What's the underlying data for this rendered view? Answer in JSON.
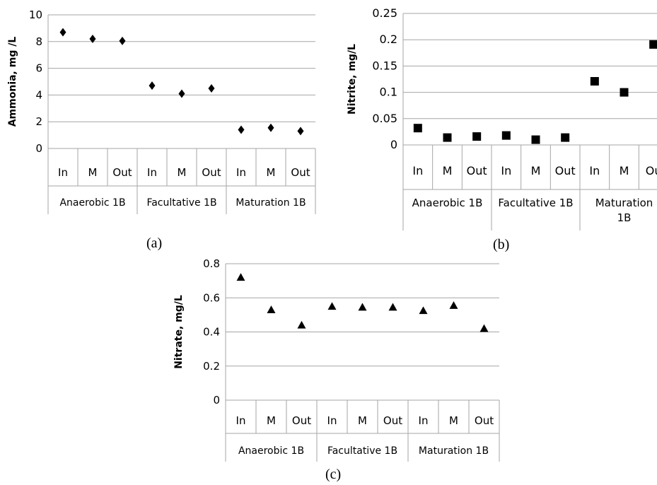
{
  "chart_data": [
    {
      "id": "a",
      "type": "scatter",
      "caption": "(a)",
      "ylabel": "Ammonia, mg /L",
      "ylim": [
        0,
        10
      ],
      "yticks": [
        0,
        2,
        4,
        6,
        8,
        10
      ],
      "ytick_labels": [
        "0",
        "2",
        "4",
        "6",
        "8",
        "10"
      ],
      "grid": true,
      "marker": "diamond",
      "categories": [
        "In",
        "M",
        "Out",
        "In",
        "M",
        "Out",
        "In",
        "M",
        "Out"
      ],
      "groups": [
        "Anaerobic 1B",
        "Facultative 1B",
        "Maturation 1B"
      ],
      "values": [
        8.7,
        8.2,
        8.05,
        4.7,
        4.1,
        4.5,
        1.4,
        1.55,
        1.3
      ]
    },
    {
      "id": "b",
      "type": "scatter",
      "caption": "(b)",
      "ylabel": "Nitrite, mg/L",
      "ylim": [
        0,
        0.25
      ],
      "yticks": [
        0,
        0.05,
        0.1,
        0.15,
        0.2,
        0.25
      ],
      "ytick_labels": [
        "0",
        "0.05",
        "0.1",
        "0.15",
        "0.2",
        "0.25"
      ],
      "grid": true,
      "marker": "square",
      "categories": [
        "In",
        "M",
        "Out",
        "In",
        "M",
        "Out",
        "In",
        "M",
        "Ou"
      ],
      "groups": [
        "Anaerobic 1B",
        "Facultative 1B",
        "Maturation 1B"
      ],
      "group_lines": [
        [
          "Anaerobic 1B"
        ],
        [
          "Facultative 1B"
        ],
        [
          "Maturation",
          "1B"
        ]
      ],
      "values": [
        0.032,
        0.014,
        0.016,
        0.018,
        0.01,
        0.014,
        0.121,
        0.1,
        0.191
      ]
    },
    {
      "id": "c",
      "type": "scatter",
      "caption": "(c)",
      "ylabel": "Nitrate, mg/L",
      "ylim": [
        0,
        0.8
      ],
      "yticks": [
        0,
        0.2,
        0.4,
        0.6,
        0.8
      ],
      "ytick_labels": [
        "0",
        "0.2",
        "0.4",
        "0.6",
        "0.8"
      ],
      "grid": true,
      "marker": "triangle",
      "categories": [
        "In",
        "M",
        "Out",
        "In",
        "M",
        "Out",
        "In",
        "M",
        "Out"
      ],
      "groups": [
        "Anaerobic 1B",
        "Facultative 1B",
        "Maturation 1B"
      ],
      "values": [
        0.72,
        0.53,
        0.44,
        0.55,
        0.545,
        0.545,
        0.525,
        0.555,
        0.42
      ]
    }
  ]
}
